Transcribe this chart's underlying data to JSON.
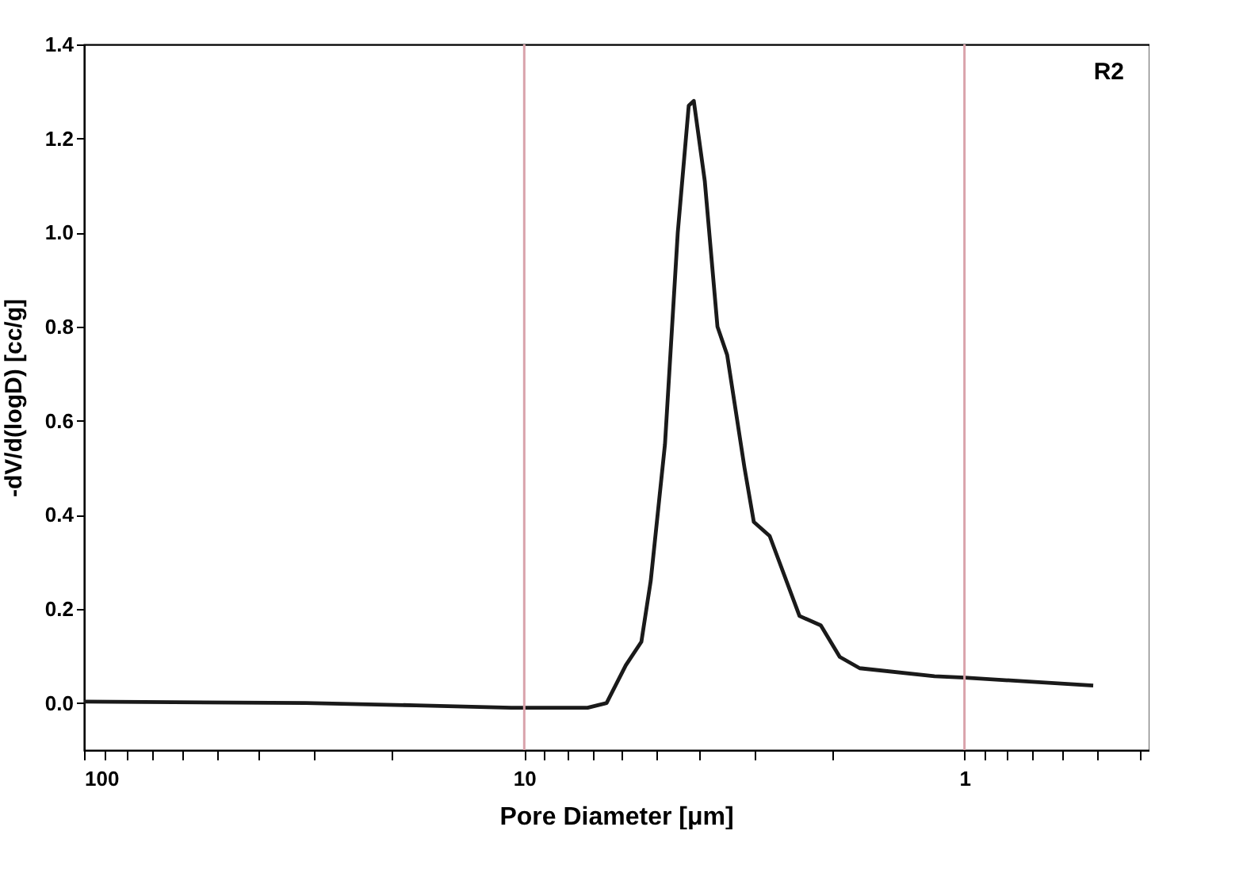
{
  "chart_data": {
    "type": "line",
    "xlabel": "Pore Diameter [μm]",
    "ylabel": "-dV/d(logD) [cc/g]",
    "annotations": [
      "R2"
    ],
    "log": "x",
    "xlim": [
      100,
      0.38
    ],
    "ylim": [
      -0.1,
      1.4
    ],
    "xticks": [
      100,
      {
        "value": 90,
        "label": null
      },
      {
        "value": 80,
        "label": null
      },
      {
        "value": 70,
        "label": null
      },
      {
        "value": 60,
        "label": null
      },
      {
        "value": 50,
        "label": null
      },
      {
        "value": 40,
        "label": null
      },
      {
        "value": 30,
        "label": null
      },
      {
        "value": 20,
        "label": null
      },
      10,
      {
        "value": 9,
        "label": null
      },
      {
        "value": 8,
        "label": null
      },
      {
        "value": 7,
        "label": null
      },
      {
        "value": 6,
        "label": null
      },
      {
        "value": 5,
        "label": null
      },
      {
        "value": 4,
        "label": null
      },
      {
        "value": 3,
        "label": null
      },
      {
        "value": 2,
        "label": null
      },
      1,
      {
        "value": 0.9,
        "label": null
      },
      {
        "value": 0.8,
        "label": null
      },
      {
        "value": 0.7,
        "label": null
      },
      {
        "value": 0.6,
        "label": null
      },
      {
        "value": 0.5,
        "label": null
      },
      {
        "value": 0.4,
        "label": null
      }
    ],
    "yticks": [
      {
        "value": 0,
        "label": "0.0"
      },
      0.2,
      0.4,
      0.6,
      0.8,
      {
        "value": 1,
        "label": "1.0"
      },
      1.2,
      1.4
    ],
    "ref_lines": [
      {
        "axis": "x",
        "value": 10,
        "color": "#d9a3ab"
      },
      {
        "axis": "x",
        "value": 1,
        "color": "#d9a3ab"
      }
    ],
    "series": [
      {
        "color": "#1a1a1a",
        "x": [
          100,
          31.4,
          17.6,
          10.7,
          7.18,
          6.5,
          5.88,
          5.42,
          5.16,
          4.79,
          4.48,
          4.23,
          4.12,
          3.89,
          3.64,
          3.46,
          3.16,
          3.01,
          2.77,
          2.37,
          2.12,
          1.92,
          1.73,
          1.17,
          1.0,
          0.51
        ],
        "values": [
          0.003,
          0.0,
          -0.005,
          -0.01,
          -0.01,
          0.0,
          0.08,
          0.13,
          0.26,
          0.55,
          1.0,
          1.27,
          1.28,
          1.11,
          0.8,
          0.74,
          0.5,
          0.385,
          0.355,
          0.185,
          0.165,
          0.098,
          0.074,
          0.057,
          0.054,
          0.037
        ]
      }
    ]
  }
}
